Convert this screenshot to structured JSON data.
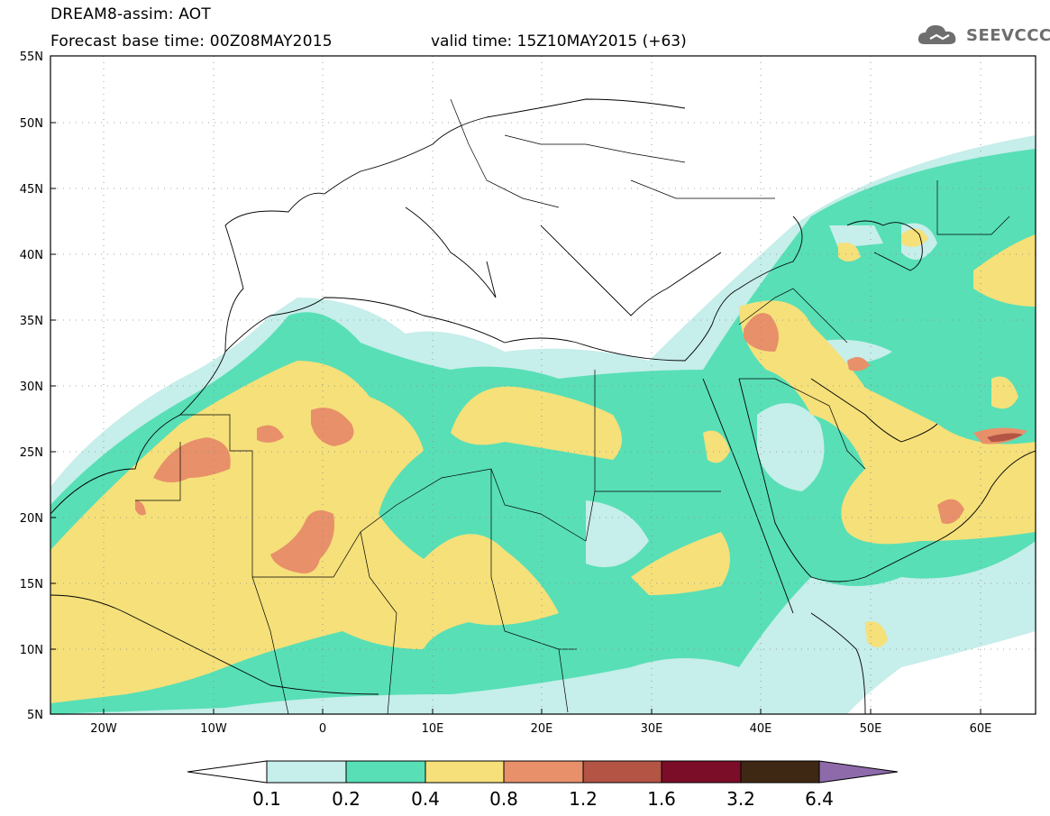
{
  "header": {
    "title_line1": "DREAM8-assim: AOT",
    "title_line2": "Forecast base time: 00Z08MAY2015",
    "valid_time": "valid time: 15Z10MAY2015 (+63)",
    "logo_text": "SEEVCCC"
  },
  "map": {
    "lat_labels": [
      "55N",
      "50N",
      "45N",
      "40N",
      "35N",
      "30N",
      "25N",
      "20N",
      "15N",
      "10N",
      "5N"
    ],
    "lon_labels": [
      "20W",
      "10W",
      "0",
      "10E",
      "20E",
      "30E",
      "40E",
      "50E",
      "60E"
    ],
    "grid_dotted": true,
    "region": "North Africa, Mediterranean, Middle East"
  },
  "legend": {
    "thresholds": [
      "0.1",
      "0.2",
      "0.4",
      "0.8",
      "1.2",
      "1.6",
      "3.2",
      "6.4"
    ],
    "colors": [
      "#ffffff",
      "#c6eeea",
      "#58dfb6",
      "#f5e07a",
      "#e8906a",
      "#b35445",
      "#7b0d28",
      "#3e2814",
      "#8e6aab"
    ]
  }
}
